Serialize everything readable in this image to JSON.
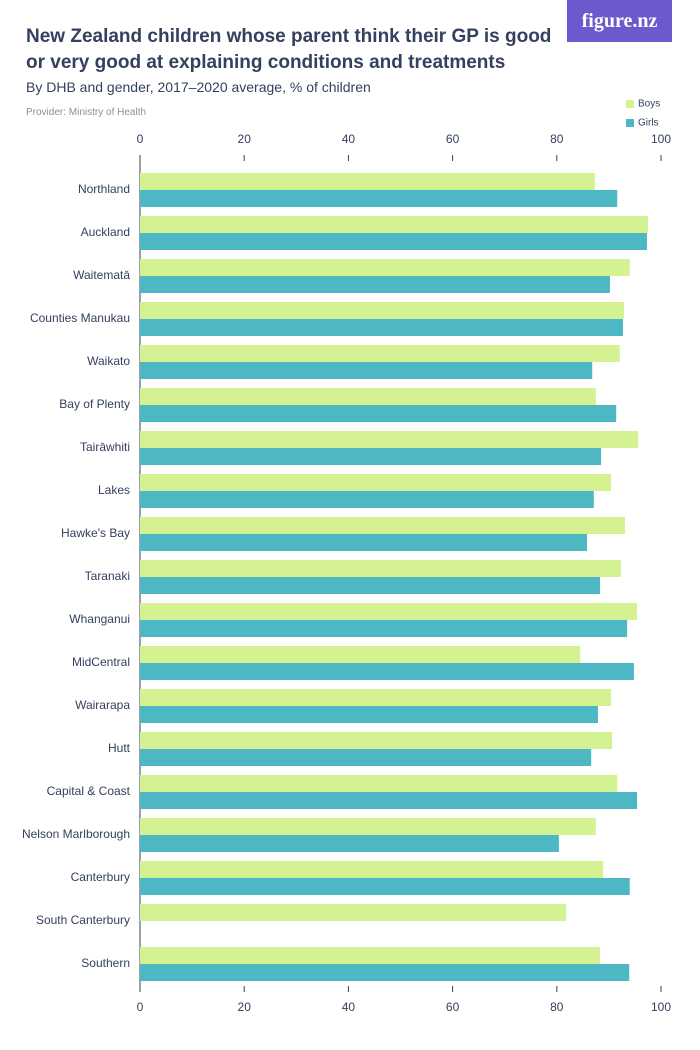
{
  "chart_data": {
    "type": "hbar",
    "title": "New Zealand children whose parent think their GP is good or very good at explaining conditions and treatments",
    "subtitle": "By DHB and gender, 2017–2020 average, % of children",
    "caption": "Provider: Ministry of Health",
    "logo": "figure.nz",
    "categories": [
      "Northland",
      "Auckland",
      "Waitematā",
      "Counties Manukau",
      "Waikato",
      "Bay of Plenty",
      "Tairāwhiti",
      "Lakes",
      "Hawke's Bay",
      "Taranaki",
      "Whanganui",
      "MidCentral",
      "Wairarapa",
      "Hutt",
      "Capital & Coast",
      "Nelson Marlborough",
      "Canterbury",
      "South Canterbury",
      "Southern"
    ],
    "series": [
      {
        "name": "Boys",
        "color": "#d4f291",
        "values": [
          87.3,
          97.5,
          94.0,
          92.9,
          92.1,
          87.5,
          95.6,
          90.4,
          93.1,
          92.3,
          95.4,
          84.5,
          90.4,
          90.6,
          91.6,
          87.5,
          88.9,
          81.8,
          88.3
        ]
      },
      {
        "name": "Girls",
        "color": "#4db8c4",
        "values": [
          91.6,
          97.3,
          90.2,
          92.7,
          86.8,
          91.4,
          88.5,
          87.1,
          85.8,
          88.3,
          93.5,
          94.8,
          87.9,
          86.6,
          95.4,
          80.4,
          94.0,
          null,
          93.9
        ]
      }
    ],
    "xlim": [
      0,
      100
    ],
    "xticks": [
      0,
      20,
      40,
      60,
      80,
      100
    ],
    "grid": false,
    "legend": "top-right"
  }
}
